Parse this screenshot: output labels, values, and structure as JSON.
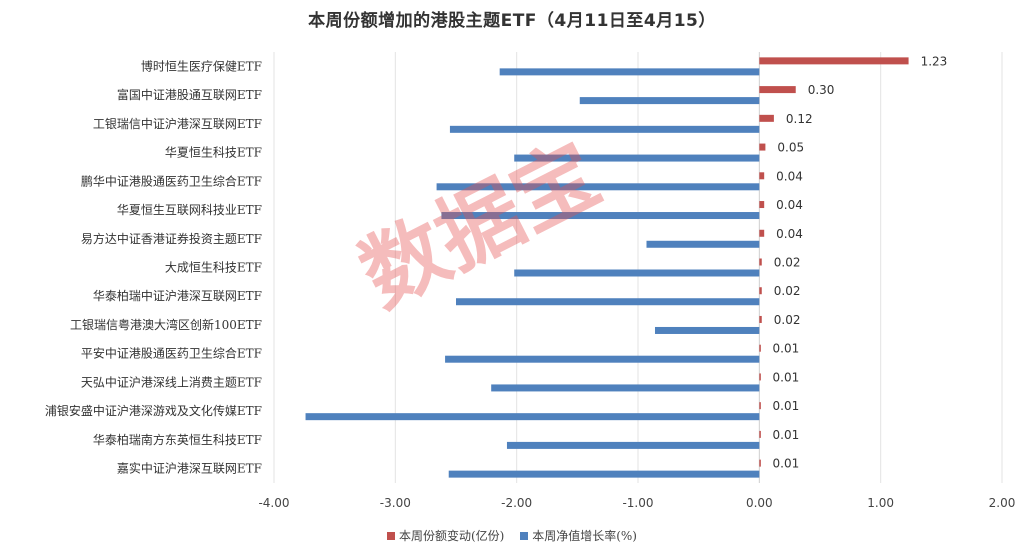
{
  "chart_data": {
    "type": "bar",
    "orientation": "horizontal",
    "title": "本周份额增加的港股主题ETF（4月11日至4月15）",
    "categories": [
      "博时恒生医疗保健ETF",
      "富国中证港股通互联网ETF",
      "工银瑞信中证沪港深互联网ETF",
      "华夏恒生科技ETF",
      "鹏华中证港股通医药卫生综合ETF",
      "华夏恒生互联网科技业ETF",
      "易方达中证香港证券投资主题ETF",
      "大成恒生科技ETF",
      "华泰柏瑞中证沪港深互联网ETF",
      "工银瑞信粤港澳大湾区创新100ETF",
      "平安中证港股通医药卫生综合ETF",
      "天弘中证沪港深线上消费主题ETF",
      "浦银安盛中证沪港深游戏及文化传媒ETF",
      "华泰柏瑞南方东英恒生科技ETF",
      "嘉实中证沪港深互联网ETF"
    ],
    "series": [
      {
        "name": "本周份额变动(亿份)",
        "color": "#c0504d",
        "values": [
          1.23,
          0.3,
          0.12,
          0.05,
          0.04,
          0.04,
          0.04,
          0.02,
          0.02,
          0.02,
          0.01,
          0.01,
          0.01,
          0.01,
          0.01
        ],
        "data_labels": [
          "1.23",
          "0.30",
          "0.12",
          "0.05",
          "0.04",
          "0.04",
          "0.04",
          "0.02",
          "0.02",
          "0.02",
          "0.01",
          "0.01",
          "0.01",
          "0.01",
          "0.01"
        ]
      },
      {
        "name": "本周净值增长率(%)",
        "color": "#4f81bd",
        "values": [
          -2.14,
          -1.48,
          -2.55,
          -2.02,
          -2.66,
          -2.62,
          -0.93,
          -2.02,
          -2.5,
          -0.86,
          -2.59,
          -2.21,
          -3.74,
          -2.08,
          -2.56
        ]
      }
    ],
    "xlim": [
      -4,
      2
    ],
    "xticks": [
      "-4.00",
      "-3.00",
      "-2.00",
      "-1.00",
      "0.00",
      "1.00",
      "2.00"
    ],
    "xtick_values": [
      -4,
      -3,
      -2,
      -1,
      0,
      1,
      2
    ],
    "grid": "vertical",
    "legend": "bottom"
  },
  "watermark": "数据宝"
}
